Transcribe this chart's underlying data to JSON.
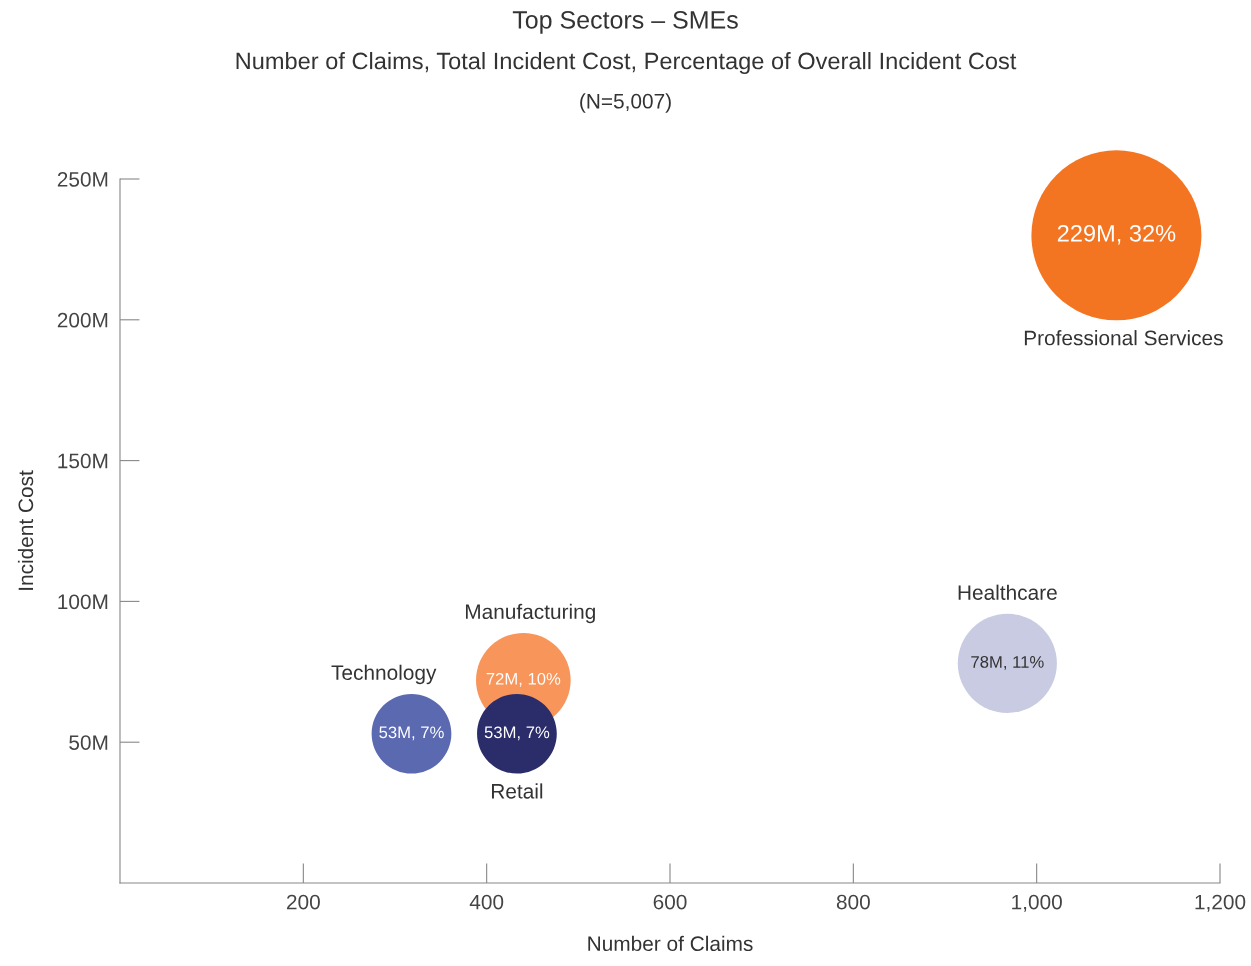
{
  "chart_data": {
    "type": "bubble",
    "title": "Top Sectors – SMEs",
    "subtitle": "Number of Claims, Total Incident Cost, Percentage of Overall Incident Cost",
    "annotations": [
      "(N=5,007)"
    ],
    "xlabel": "Number of Claims",
    "ylabel": "Incident Cost",
    "xlim": [
      0,
      1200
    ],
    "ylim": [
      0,
      250
    ],
    "xticks": [
      200,
      400,
      600,
      800,
      {
        "value": 1000,
        "label": "1,000"
      },
      {
        "value": 1200,
        "label": "1,200"
      }
    ],
    "yticks": [
      {
        "value": 50,
        "label": "50M"
      },
      {
        "value": 100,
        "label": "100M"
      },
      {
        "value": 150,
        "label": "150M"
      },
      {
        "value": 200,
        "label": "200M"
      },
      {
        "value": 250,
        "label": "250M"
      }
    ],
    "grid": false,
    "legend": false,
    "series": [
      {
        "name": "Professional Services",
        "color": "#f47521",
        "x": [
          1087
        ],
        "values": [
          230
        ],
        "sizes": [
          1
        ],
        "value_labels": [
          "229M, 32%"
        ]
      },
      {
        "name": "Healthcare",
        "color": "#c9cbe3",
        "x": [
          968
        ],
        "values": [
          78
        ],
        "sizes": [
          0.34
        ],
        "value_labels": [
          "78M, 11%"
        ]
      },
      {
        "name": "Manufacturing",
        "color": "#f7955b",
        "x": [
          440
        ],
        "values": [
          72
        ],
        "sizes": [
          0.31
        ],
        "value_labels": [
          "72M, 10%"
        ]
      },
      {
        "name": "Technology",
        "color": "#5b69b1",
        "x": [
          318
        ],
        "values": [
          53
        ],
        "sizes": [
          0.22
        ],
        "value_labels": [
          "53M, 7%"
        ]
      },
      {
        "name": "Retail",
        "color": "#2b2d6b",
        "x": [
          433
        ],
        "values": [
          53
        ],
        "sizes": [
          0.22
        ],
        "value_labels": [
          "53M, 7%"
        ]
      }
    ]
  }
}
